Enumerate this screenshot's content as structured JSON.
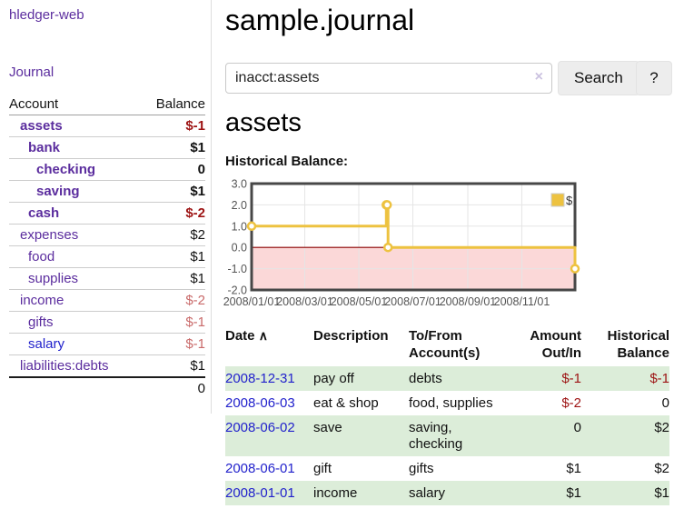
{
  "colors": {
    "link_purple": "#5b2d9e",
    "link_blue": "#2222cc",
    "negative_strong": "#9d1313",
    "negative_soft": "#c96a6a",
    "row_green": "#dcedd9",
    "divider": "#dddddd",
    "row_border": "#cccccc"
  },
  "sidebar": {
    "app_title": "hledger-web",
    "journal_label": "Journal",
    "accounts_table": {
      "headers": {
        "account": "Account",
        "balance": "Balance"
      },
      "rows": [
        {
          "name": "assets",
          "indent": 0,
          "bold": true,
          "blue": false,
          "balance": "$-1",
          "balance_class": "neg-strong"
        },
        {
          "name": "bank",
          "indent": 1,
          "bold": true,
          "blue": false,
          "balance": "$1",
          "balance_class": "bold"
        },
        {
          "name": "checking",
          "indent": 2,
          "bold": true,
          "blue": false,
          "balance": "0",
          "balance_class": "bold"
        },
        {
          "name": "saving",
          "indent": 2,
          "bold": true,
          "blue": false,
          "balance": "$1",
          "balance_class": "bold"
        },
        {
          "name": "cash",
          "indent": 1,
          "bold": true,
          "blue": false,
          "balance": "$-2",
          "balance_class": "neg-strong"
        },
        {
          "name": "expenses",
          "indent": 0,
          "bold": false,
          "blue": false,
          "balance": "$2",
          "balance_class": "plain"
        },
        {
          "name": "food",
          "indent": 1,
          "bold": false,
          "blue": false,
          "balance": "$1",
          "balance_class": "plain"
        },
        {
          "name": "supplies",
          "indent": 1,
          "bold": false,
          "blue": false,
          "balance": "$1",
          "balance_class": "plain"
        },
        {
          "name": "income",
          "indent": 0,
          "bold": false,
          "blue": false,
          "balance": "$-2",
          "balance_class": "neg-soft"
        },
        {
          "name": "gifts",
          "indent": 1,
          "bold": false,
          "blue": false,
          "balance": "$-1",
          "balance_class": "neg-soft"
        },
        {
          "name": "salary",
          "indent": 1,
          "bold": false,
          "blue": true,
          "balance": "$-1",
          "balance_class": "neg-soft"
        },
        {
          "name": "liabilities:debts",
          "indent": 0,
          "bold": false,
          "blue": false,
          "balance": "$1",
          "balance_class": "plain"
        }
      ],
      "total": "0"
    }
  },
  "main": {
    "title": "sample.journal",
    "search": {
      "value": "inacct:assets",
      "clear_icon": "×",
      "button_label": "Search",
      "help_label": "?"
    },
    "account_heading": "assets",
    "chart_heading": "Historical Balance:"
  },
  "chart_data": {
    "type": "line",
    "title": "Historical Balance:",
    "legend": {
      "label": "$",
      "position": "top-right"
    },
    "series": [
      {
        "name": "$",
        "color": "#edc240",
        "step": true,
        "points": [
          [
            "2008-01-01",
            1
          ],
          [
            "2008-06-01",
            2
          ],
          [
            "2008-06-02",
            2
          ],
          [
            "2008-06-03",
            0
          ],
          [
            "2008-12-31",
            -1
          ]
        ]
      }
    ],
    "xlim": [
      "2008-01-01",
      "2008-12-31"
    ],
    "ylim": [
      -2,
      3
    ],
    "x_ticks": [
      {
        "date": "2008-01-01",
        "label": "2008/01/01"
      },
      {
        "date": "2008-03-01",
        "label": "2008/03/01"
      },
      {
        "date": "2008-05-01",
        "label": "2008/05/01"
      },
      {
        "date": "2008-07-01",
        "label": "2008/07/01"
      },
      {
        "date": "2008-09-01",
        "label": "2008/09/01"
      },
      {
        "date": "2008-11-01",
        "label": "2008/11/01"
      }
    ],
    "y_ticks": [
      {
        "value": 3,
        "label": "3.0"
      },
      {
        "value": 2,
        "label": "2.0"
      },
      {
        "value": 1,
        "label": "1.0"
      },
      {
        "value": 0,
        "label": "0.0"
      },
      {
        "value": -1,
        "label": "-1.0"
      },
      {
        "value": -2,
        "label": "-2.0"
      }
    ],
    "grid": true,
    "grid_color": "#e5e5e5",
    "border_color": "#474747",
    "zero_line_color": "#8b0000",
    "negative_region_color": "#fbd8d8",
    "tick_label_color": "#545454"
  },
  "transactions": {
    "headers": {
      "date": "Date",
      "sort_icon": "∧",
      "description": "Description",
      "accounts_line1": "To/From",
      "accounts_line2": "Account(s)",
      "amount_line1": "Amount",
      "amount_line2": "Out/In",
      "balance_line1": "Historical",
      "balance_line2": "Balance"
    },
    "rows": [
      {
        "date": "2008-12-31",
        "description": "pay off",
        "accounts": "debts",
        "amount": "$-1",
        "amount_negative": true,
        "balance": "$-1",
        "balance_negative": true,
        "shaded": true
      },
      {
        "date": "2008-06-03",
        "description": "eat & shop",
        "accounts": "food, supplies",
        "amount": "$-2",
        "amount_negative": true,
        "balance": "0",
        "balance_negative": false,
        "shaded": false
      },
      {
        "date": "2008-06-02",
        "description": "save",
        "accounts": "saving,\nchecking",
        "amount": "0",
        "amount_negative": false,
        "balance": "$2",
        "balance_negative": false,
        "shaded": true
      },
      {
        "date": "2008-06-01",
        "description": "gift",
        "accounts": "gifts",
        "amount": "$1",
        "amount_negative": false,
        "balance": "$2",
        "balance_negative": false,
        "shaded": false
      },
      {
        "date": "2008-01-01",
        "description": "income",
        "accounts": "salary",
        "amount": "$1",
        "amount_negative": false,
        "balance": "$1",
        "balance_negative": false,
        "shaded": true
      }
    ]
  }
}
